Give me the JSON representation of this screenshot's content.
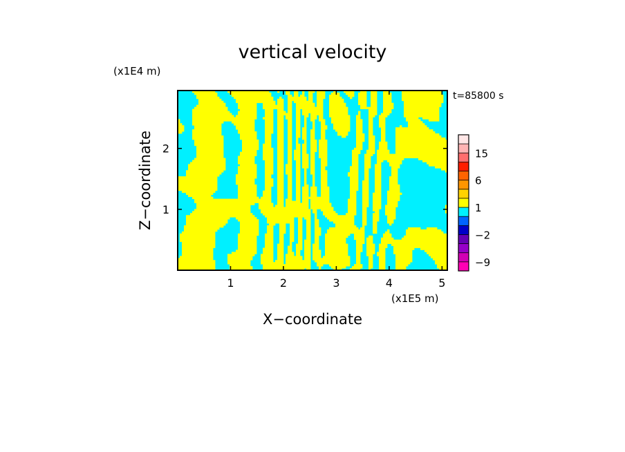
{
  "chart_data": {
    "type": "heatmap",
    "title": "vertical velocity",
    "xlabel": "X−coordinate",
    "ylabel": "Z−coordinate",
    "x_unit": "(x1E5 m)",
    "y_unit": "(x1E4 m)",
    "time_label": "t=85800 s",
    "xlim": [
      0,
      5.1
    ],
    "ylim": [
      0,
      2.95
    ],
    "x_ticks": [
      1,
      2,
      3,
      4,
      5
    ],
    "y_ticks": [
      1,
      2
    ],
    "field_colors": {
      "positive": "#ffff00",
      "negative": "#00f0ff"
    },
    "colorbar": {
      "levels": [
        "-12",
        "-9",
        "-6",
        "-4",
        "-2",
        "-1",
        "0",
        "1",
        "2",
        "4",
        "6",
        "9",
        "12",
        "15",
        "18",
        "21"
      ],
      "tick_labels": [
        "15",
        "6",
        "1",
        "−2",
        "−9"
      ],
      "colors": [
        "#ff00b4",
        "#d200b4",
        "#9600c8",
        "#6400b4",
        "#0000c8",
        "#0064ff",
        "#00f0ff",
        "#ffff00",
        "#ffd200",
        "#ff9600",
        "#ff6400",
        "#ff1e00",
        "#ff6e6e",
        "#ffb4b4",
        "#ffe6e6"
      ]
    }
  }
}
